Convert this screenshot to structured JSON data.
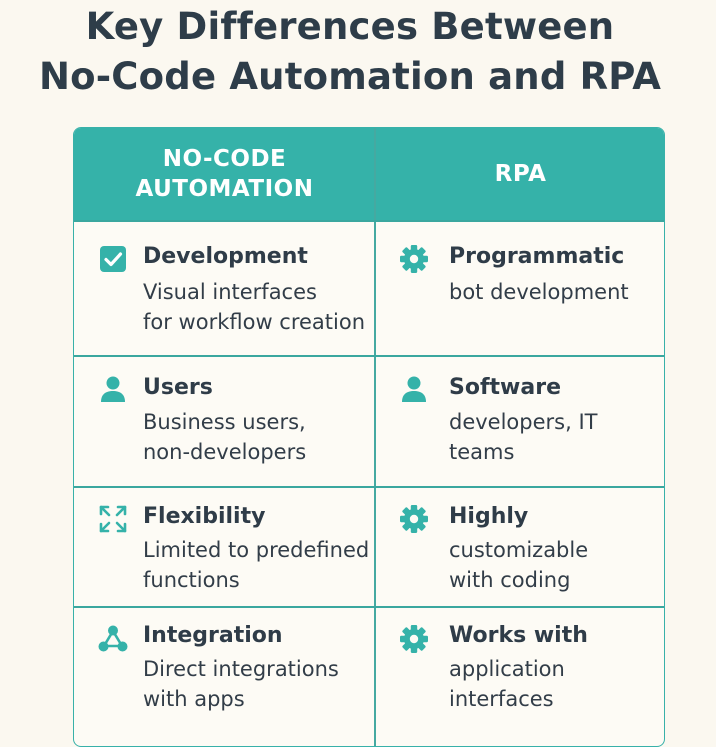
{
  "title": {
    "line1": "Key Differences Between",
    "line2": "No-Code Automation and RPA"
  },
  "columns": {
    "left": {
      "line1": "NO-CODE",
      "line2": "AUTOMATION"
    },
    "right": {
      "label": "RPA"
    }
  },
  "rows": [
    {
      "left": {
        "icon": "checkbox-icon",
        "heading": "Development",
        "desc": [
          "Visual interfaces",
          "for workflow creation"
        ]
      },
      "right": {
        "icon": "gear-icon",
        "heading": "Programmatic",
        "desc": [
          "bot development"
        ]
      }
    },
    {
      "left": {
        "icon": "user-icon",
        "heading": "Users",
        "desc": [
          "Business users,",
          "non-developers"
        ]
      },
      "right": {
        "icon": "user-icon",
        "heading": "Software",
        "desc": [
          "developers, IT",
          "teams"
        ]
      }
    },
    {
      "left": {
        "icon": "expand-arrows-icon",
        "heading": "Flexibility",
        "desc": [
          "Limited to predefined",
          "functions"
        ]
      },
      "right": {
        "icon": "gear-icon",
        "heading": "Highly",
        "desc": [
          "customizable",
          "with coding"
        ]
      }
    },
    {
      "left": {
        "icon": "network-icon",
        "heading": "Integration",
        "desc": [
          "Direct integrations",
          "with apps"
        ]
      },
      "right": {
        "icon": "gear-icon",
        "heading": "Works with",
        "desc": [
          "application",
          "interfaces"
        ]
      }
    }
  ],
  "colors": {
    "accent": "#35b2a9",
    "background": "#fbf8f0",
    "text": "#2f3a46"
  }
}
